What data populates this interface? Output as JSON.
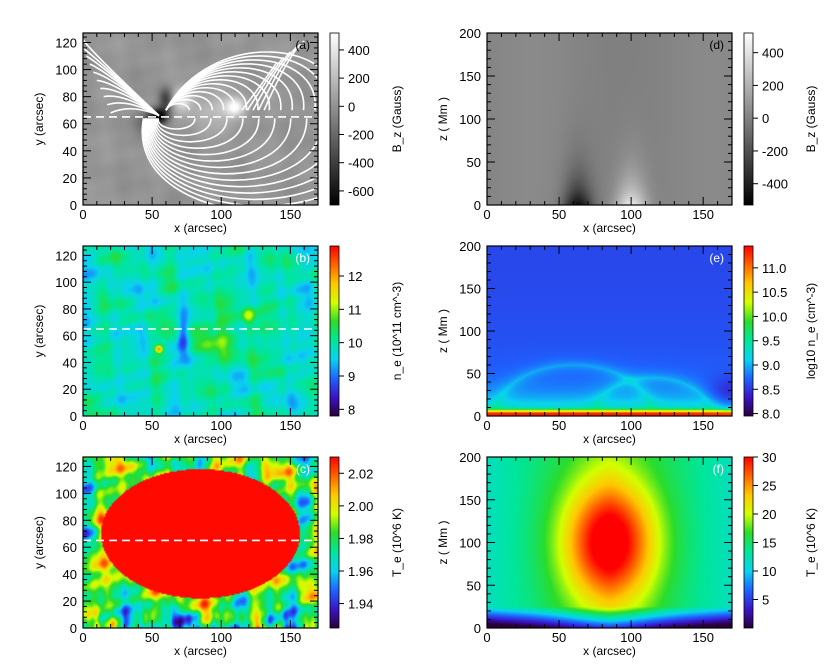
{
  "chart_data": [
    {
      "panel": "(a)",
      "type": "heatmap",
      "xlabel": "x (arcsec)",
      "ylabel": "y (arcsec)",
      "xlim": [
        0,
        170
      ],
      "ylim": [
        0,
        127
      ],
      "xticks": [
        0,
        50,
        100,
        150
      ],
      "yticks": [
        0,
        20,
        40,
        60,
        80,
        100,
        120
      ],
      "colorbar": {
        "label": "B_z (Gauss)",
        "min": -700,
        "max": 520,
        "ticks": [
          -600,
          -400,
          -200,
          0,
          200,
          400
        ],
        "colors": [
          "#000000",
          "#ffffff"
        ]
      },
      "dashed_line_y": 65,
      "field_lines": true
    },
    {
      "panel": "(b)",
      "type": "heatmap",
      "xlabel": "x (arcsec)",
      "ylabel": "y (arcsec)",
      "xlim": [
        0,
        170
      ],
      "ylim": [
        0,
        127
      ],
      "xticks": [
        0,
        50,
        100,
        150
      ],
      "yticks": [
        0,
        20,
        40,
        60,
        80,
        100,
        120
      ],
      "colorbar": {
        "label": "n_e (10^11 cm^-3)",
        "min": 7.8,
        "max": 12.9,
        "ticks": [
          8,
          9,
          10,
          11,
          12
        ],
        "colors": [
          "#2a0038",
          "#3b14c8",
          "#1e64ff",
          "#0ad2f0",
          "#00e69b",
          "#2bdc2b",
          "#d2ff00",
          "#ffc800",
          "#ff6400",
          "#ff0000"
        ]
      },
      "dashed_line_y": 65
    },
    {
      "panel": "(c)",
      "type": "heatmap",
      "xlabel": "x (arcsec)",
      "ylabel": "y (arcsec)",
      "xlim": [
        0,
        170
      ],
      "ylim": [
        0,
        127
      ],
      "xticks": [
        0,
        50,
        100,
        150
      ],
      "yticks": [
        0,
        20,
        40,
        60,
        80,
        100,
        120
      ],
      "colorbar": {
        "label": "T_e (10^6 K)",
        "min": 1.925,
        "max": 2.03,
        "ticks": [
          1.94,
          1.96,
          1.98,
          2.0,
          2.02
        ],
        "tick_labels": [
          "1.94",
          "1.96",
          "1.98",
          "2.00",
          "2.02"
        ],
        "colors": [
          "#2a0038",
          "#3b14c8",
          "#1e64ff",
          "#0ad2f0",
          "#00e69b",
          "#2bdc2b",
          "#d2ff00",
          "#ffc800",
          "#ff6400",
          "#ff0000"
        ]
      },
      "dashed_line_y": 65
    },
    {
      "panel": "(d)",
      "type": "heatmap",
      "xlabel": "x (arcsec)",
      "ylabel": "z ( Mm )",
      "xlim": [
        0,
        170
      ],
      "ylim": [
        0,
        200
      ],
      "xticks": [
        0,
        50,
        100,
        150
      ],
      "yticks": [
        0,
        50,
        100,
        150,
        200
      ],
      "colorbar": {
        "label": "B_z (Gauss)",
        "min": -530,
        "max": 520,
        "ticks": [
          -400,
          -200,
          0,
          200,
          400
        ],
        "colors": [
          "#000000",
          "#ffffff"
        ]
      }
    },
    {
      "panel": "(e)",
      "type": "heatmap",
      "xlabel": "x (arcsec)",
      "ylabel": "z ( Mm )",
      "xlim": [
        0,
        170
      ],
      "ylim": [
        0,
        200
      ],
      "xticks": [
        0,
        50,
        100,
        150
      ],
      "yticks": [
        0,
        50,
        100,
        150,
        200
      ],
      "colorbar": {
        "label": "log10 n_e (cm^-3)",
        "min": 7.95,
        "max": 11.45,
        "ticks": [
          8.0,
          8.5,
          9.0,
          9.5,
          10.0,
          10.5,
          11.0
        ],
        "tick_labels": [
          "8.0",
          "8.5",
          "9.0",
          "9.5",
          "10.0",
          "10.5",
          "11.0"
        ],
        "colors": [
          "#2a0038",
          "#3b14c8",
          "#1e64ff",
          "#0ad2f0",
          "#00e69b",
          "#2bdc2b",
          "#d2ff00",
          "#ffc800",
          "#ff6400",
          "#ff0000"
        ]
      }
    },
    {
      "panel": "(f)",
      "type": "heatmap",
      "xlabel": "x (arcsec)",
      "ylabel": "z ( Mm )",
      "xlim": [
        0,
        170
      ],
      "ylim": [
        0,
        200
      ],
      "xticks": [
        0,
        50,
        100,
        150
      ],
      "yticks": [
        0,
        50,
        100,
        150,
        200
      ],
      "colorbar": {
        "label": "T_e (10^6 K)",
        "min": 0,
        "max": 30,
        "ticks": [
          5,
          10,
          15,
          20,
          25,
          30
        ],
        "colors": [
          "#2a0038",
          "#3b14c8",
          "#1e64ff",
          "#0ad2f0",
          "#00e69b",
          "#2bdc2b",
          "#d2ff00",
          "#ffc800",
          "#ff6400",
          "#ff0000"
        ]
      }
    }
  ]
}
